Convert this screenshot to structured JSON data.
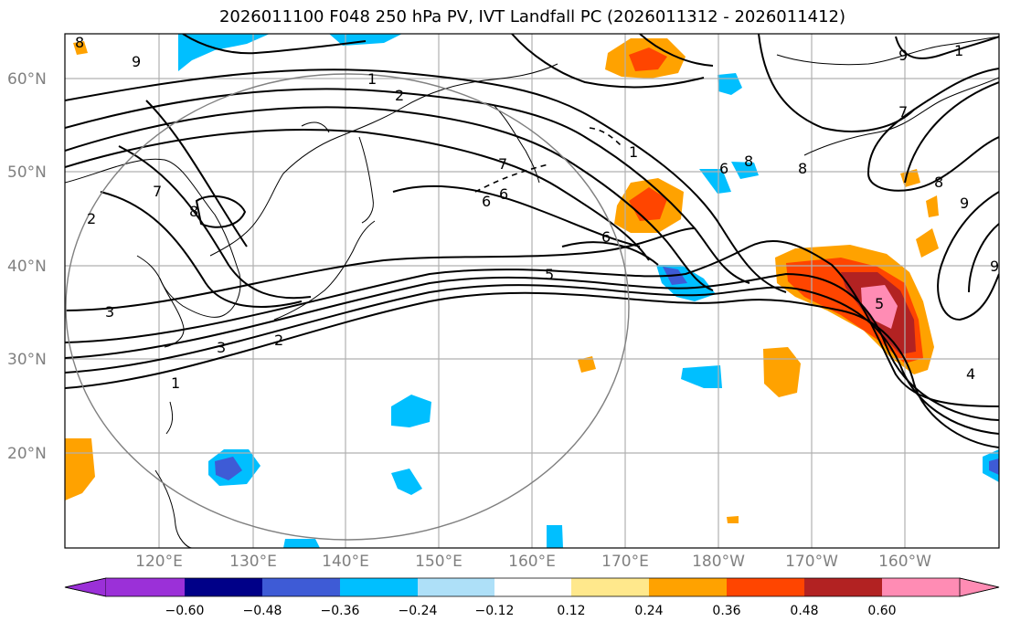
{
  "title": "2026011100 F048 250 hPa PV, IVT Landfall PC (2026011312 - 2026011412)",
  "lat_labels": [
    "60°N",
    "50°N",
    "40°N",
    "30°N",
    "20°N"
  ],
  "lon_labels": [
    "120°E",
    "130°E",
    "140°E",
    "150°E",
    "160°E",
    "170°E",
    "180°W",
    "170°W",
    "160°W"
  ],
  "contour_labels": [
    "8",
    "9",
    "1",
    "2",
    "7",
    "8",
    "2",
    "3",
    "3",
    "1",
    "2",
    "1",
    "7",
    "6",
    "6",
    "5",
    "8",
    "8",
    "9",
    "9",
    "7",
    "9",
    "5",
    "4",
    "8",
    "1",
    "6",
    "6"
  ],
  "colorbar": {
    "ticks": [
      "−0.60",
      "−0.48",
      "−0.36",
      "−0.24",
      "−0.12",
      "0.12",
      "0.24",
      "0.36",
      "0.48",
      "0.60"
    ],
    "colors": [
      "#9b30d8",
      "#000088",
      "#3e5bd6",
      "#00bfff",
      "#aee0f8",
      "#ffffff",
      "#ffe88c",
      "#ffa200",
      "#ff4500",
      "#b22222",
      "#ff8cb4"
    ]
  }
}
